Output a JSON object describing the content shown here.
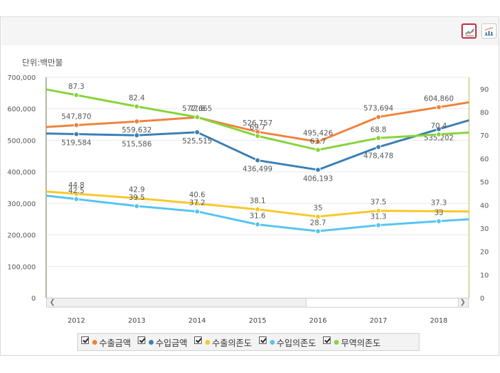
{
  "toolbar": {
    "buttons": [
      {
        "icon": "line-chart-icon",
        "active": true
      },
      {
        "icon": "bar-line-chart-icon",
        "active": false
      }
    ]
  },
  "unit_label": "단위:백만불",
  "colors": {
    "export_amount": "#f0823c",
    "import_amount": "#3a7fb5",
    "export_dependency": "#f7c82a",
    "import_dependency": "#56c4f2",
    "trade_dependency": "#86d43a"
  },
  "chart_data": {
    "type": "line",
    "categories": [
      "2012",
      "2013",
      "2014",
      "2015",
      "2016",
      "2017",
      "2018"
    ],
    "y_left": {
      "range": [
        0,
        700000
      ],
      "ticks": [
        "0",
        "100,000",
        "200,000",
        "300,000",
        "400,000",
        "500,000",
        "600,000",
        "700,000"
      ]
    },
    "y_right": {
      "range": [
        0,
        95
      ],
      "ticks": [
        "0",
        "10",
        "20",
        "30",
        "40",
        "50",
        "60",
        "70",
        "80",
        "90"
      ]
    },
    "series": [
      {
        "key": "export_amount",
        "name": "수출금액",
        "axis": "left",
        "values": [
          547870,
          559632,
          572665,
          526757,
          495426,
          573694,
          604860
        ],
        "labels": [
          "547,870",
          "559,632",
          "572,665",
          "526,757",
          "495,426",
          "573,694",
          "604,860"
        ],
        "label_pos": [
          "above",
          "below",
          "above",
          "above",
          "above",
          "above",
          "above"
        ]
      },
      {
        "key": "import_amount",
        "name": "수입금액",
        "axis": "left",
        "values": [
          519584,
          515586,
          525515,
          436499,
          406193,
          478478,
          535202
        ],
        "labels": [
          "519,584",
          "515,586",
          "525,515",
          "436,499",
          "406,193",
          "478,478",
          "535,202"
        ],
        "label_pos": [
          "below",
          "below",
          "below",
          "below",
          "below",
          "below",
          "below"
        ]
      },
      {
        "key": "export_dependency",
        "name": "수출의존도",
        "axis": "right",
        "values": [
          44.8,
          42.9,
          40.6,
          38.1,
          35,
          37.5,
          37.3
        ],
        "labels": [
          "44.8",
          "42.9",
          "40.6",
          "38.1",
          "35",
          "37.5",
          "37.3"
        ],
        "label_pos": [
          "above",
          "above",
          "above",
          "above",
          "above",
          "above",
          "above"
        ]
      },
      {
        "key": "import_dependency",
        "name": "수입의존도",
        "axis": "right",
        "values": [
          42.5,
          39.5,
          37.2,
          31.6,
          28.7,
          31.3,
          33
        ],
        "labels": [
          "42.5",
          "39.5",
          "37.2",
          "31.6",
          "28.7",
          "31.3",
          "33"
        ],
        "label_pos": [
          "above",
          "above",
          "above",
          "above",
          "above",
          "above",
          "above"
        ]
      },
      {
        "key": "trade_dependency",
        "name": "무역의존도",
        "axis": "right",
        "values": [
          87.3,
          82.4,
          77.8,
          69.7,
          63.7,
          68.8,
          70.4
        ],
        "labels": [
          "87.3",
          "82.4",
          "77.8",
          "69.7",
          "63.7",
          "68.8",
          "70.4"
        ],
        "label_pos": [
          "above",
          "above",
          "above",
          "above",
          "above",
          "above",
          "above"
        ]
      }
    ],
    "legend": {
      "placement": "bottom",
      "checked": [
        true,
        true,
        true,
        true,
        true
      ]
    },
    "grid": true
  }
}
